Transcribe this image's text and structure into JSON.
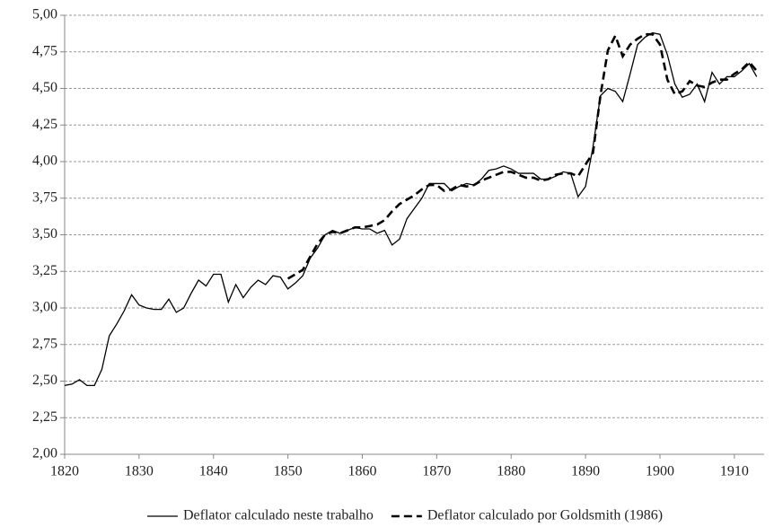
{
  "chart_data": {
    "type": "line",
    "x": [
      1820,
      1821,
      1822,
      1823,
      1824,
      1825,
      1826,
      1827,
      1828,
      1829,
      1830,
      1831,
      1832,
      1833,
      1834,
      1835,
      1836,
      1837,
      1838,
      1839,
      1840,
      1841,
      1842,
      1843,
      1844,
      1845,
      1846,
      1847,
      1848,
      1849,
      1850,
      1851,
      1852,
      1853,
      1854,
      1855,
      1856,
      1857,
      1858,
      1859,
      1860,
      1861,
      1862,
      1863,
      1864,
      1865,
      1866,
      1867,
      1868,
      1869,
      1870,
      1871,
      1872,
      1873,
      1874,
      1875,
      1876,
      1877,
      1878,
      1879,
      1880,
      1881,
      1882,
      1883,
      1884,
      1885,
      1886,
      1887,
      1888,
      1889,
      1890,
      1891,
      1892,
      1893,
      1894,
      1895,
      1896,
      1897,
      1898,
      1899,
      1900,
      1901,
      1902,
      1903,
      1904,
      1905,
      1906,
      1907,
      1908,
      1909,
      1910,
      1911,
      1912,
      1913
    ],
    "series": [
      {
        "name": "Deflator calculado neste trabalho",
        "color": "#000000",
        "line_style": "solid",
        "values": [
          2.47,
          2.48,
          2.51,
          2.47,
          2.47,
          2.58,
          2.81,
          2.89,
          2.98,
          3.09,
          3.02,
          3.0,
          2.99,
          2.99,
          3.06,
          2.97,
          3.0,
          3.1,
          3.19,
          3.15,
          3.23,
          3.23,
          3.04,
          3.16,
          3.07,
          3.14,
          3.19,
          3.16,
          3.22,
          3.21,
          3.13,
          3.17,
          3.22,
          3.34,
          3.41,
          3.5,
          3.53,
          3.51,
          3.53,
          3.55,
          3.54,
          3.54,
          3.51,
          3.53,
          3.43,
          3.47,
          3.61,
          3.68,
          3.75,
          3.85,
          3.85,
          3.85,
          3.8,
          3.83,
          3.85,
          3.84,
          3.88,
          3.94,
          3.95,
          3.97,
          3.95,
          3.92,
          3.92,
          3.92,
          3.88,
          3.88,
          3.9,
          3.93,
          3.92,
          3.76,
          3.83,
          4.1,
          4.45,
          4.5,
          4.48,
          4.41,
          4.6,
          4.8,
          4.85,
          4.88,
          4.87,
          4.73,
          4.53,
          4.44,
          4.46,
          4.53,
          4.41,
          4.61,
          4.53,
          4.58,
          4.58,
          4.62,
          4.67,
          4.58
        ]
      },
      {
        "name": "Deflator calculado por Goldsmith (1986)",
        "color": "#000000",
        "line_style": "dashed",
        "values": [
          null,
          null,
          null,
          null,
          null,
          null,
          null,
          null,
          null,
          null,
          null,
          null,
          null,
          null,
          null,
          null,
          null,
          null,
          null,
          null,
          null,
          null,
          null,
          null,
          null,
          null,
          null,
          null,
          null,
          null,
          3.2,
          3.23,
          3.26,
          3.35,
          3.44,
          3.5,
          3.52,
          3.51,
          3.53,
          3.55,
          3.55,
          3.56,
          3.57,
          3.6,
          3.66,
          3.71,
          3.74,
          3.77,
          3.81,
          3.84,
          3.84,
          3.8,
          3.81,
          3.84,
          3.83,
          3.84,
          3.87,
          3.89,
          3.91,
          3.93,
          3.93,
          3.91,
          3.89,
          3.89,
          3.87,
          3.88,
          3.91,
          3.92,
          3.92,
          3.9,
          3.98,
          4.06,
          4.45,
          4.76,
          4.86,
          4.72,
          4.8,
          4.84,
          4.87,
          4.87,
          4.8,
          4.56,
          4.46,
          4.48,
          4.55,
          4.52,
          4.51,
          4.54,
          4.56,
          4.56,
          4.6,
          4.63,
          4.68,
          4.62
        ]
      }
    ],
    "xlim": [
      1820,
      1914
    ],
    "xticks": [
      1820,
      1830,
      1840,
      1850,
      1860,
      1870,
      1880,
      1890,
      1900,
      1910
    ],
    "ylim": [
      2,
      5
    ],
    "yticks": [
      {
        "value": 2,
        "label": "2,00"
      },
      {
        "value": 2.25,
        "label": "2,25"
      },
      {
        "value": 2.5,
        "label": "2,50"
      },
      {
        "value": 2.75,
        "label": "2,75"
      },
      {
        "value": 3,
        "label": "3,00"
      },
      {
        "value": 3.25,
        "label": "3,25"
      },
      {
        "value": 3.5,
        "label": "3,50"
      },
      {
        "value": 3.75,
        "label": "3,75"
      },
      {
        "value": 4,
        "label": "4,00"
      },
      {
        "value": 4.25,
        "label": "4,25"
      },
      {
        "value": 4.5,
        "label": "4,50"
      },
      {
        "value": 4.75,
        "label": "4,75"
      },
      {
        "value": 5,
        "label": "5,00"
      }
    ],
    "grid": true,
    "legend": "bottom"
  }
}
